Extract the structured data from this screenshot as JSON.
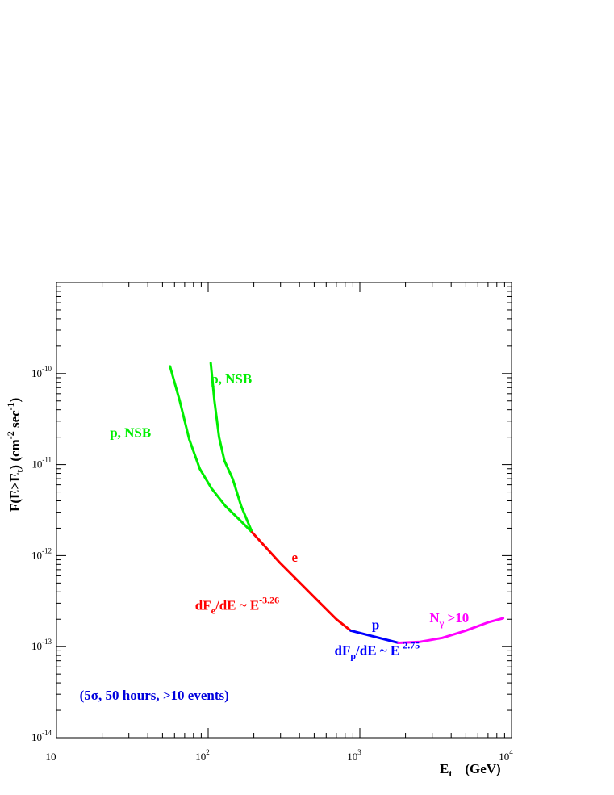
{
  "chart_data": {
    "type": "line",
    "title": "",
    "xlabel": "E",
    "xlabel_sub": "t",
    "xlabel_unit": "(GeV)",
    "ylabel": "F(E>E",
    "ylabel_sub": "t",
    "ylabel_tail": ") (cm",
    "ylabel_sup1": "-2",
    "ylabel_mid": " sec",
    "ylabel_sup2": "-1",
    "ylabel_end": ")",
    "xscale": "log",
    "yscale": "log",
    "xlim": [
      10,
      10000
    ],
    "ylim": [
      1e-14,
      1e-09
    ],
    "grid": false,
    "legend": "none",
    "x_ticks": [
      {
        "value": 10,
        "label": "10",
        "exp": ""
      },
      {
        "value": 100,
        "label": "10",
        "exp": "2"
      },
      {
        "value": 1000,
        "label": "10",
        "exp": "3"
      },
      {
        "value": 10000,
        "label": "10",
        "exp": "4"
      }
    ],
    "y_ticks": [
      {
        "value": 1e-14,
        "label": "10",
        "exp": "-14"
      },
      {
        "value": 1e-13,
        "label": "10",
        "exp": "-13"
      },
      {
        "value": 1e-12,
        "label": "10",
        "exp": "-12"
      },
      {
        "value": 1e-11,
        "label": "10",
        "exp": "-11"
      },
      {
        "value": 1e-10,
        "label": "10",
        "exp": "-10"
      }
    ],
    "series": [
      {
        "color": "#00ee00",
        "points": [
          [
            56,
            1.2e-10
          ],
          [
            65,
            5e-11
          ],
          [
            75,
            1.9e-11
          ],
          [
            88,
            9e-12
          ],
          [
            105,
            5.5e-12
          ],
          [
            130,
            3.5e-12
          ],
          [
            160,
            2.5e-12
          ],
          [
            195,
            1.8e-12
          ]
        ]
      },
      {
        "color": "#00ee00",
        "points": [
          [
            104,
            1.3e-10
          ],
          [
            110,
            5e-11
          ],
          [
            118,
            2e-11
          ],
          [
            128,
            1.1e-11
          ],
          [
            145,
            7e-12
          ],
          [
            165,
            3.5e-12
          ],
          [
            195,
            1.8e-12
          ]
        ]
      },
      {
        "color": "#ff0000",
        "points": [
          [
            195,
            1.8e-12
          ],
          [
            300,
            8.2e-13
          ],
          [
            500,
            3.5e-13
          ],
          [
            700,
            2e-13
          ],
          [
            870,
            1.5e-13
          ]
        ]
      },
      {
        "color": "#0000ff",
        "points": [
          [
            870,
            1.5e-13
          ],
          [
            1800,
            1.1e-13
          ]
        ]
      },
      {
        "color": "#ff00ff",
        "points": [
          [
            1800,
            1.1e-13
          ],
          [
            2500,
            1.13e-13
          ],
          [
            3500,
            1.25e-13
          ],
          [
            5000,
            1.5e-13
          ],
          [
            7000,
            1.85e-13
          ],
          [
            8800,
            2.05e-13
          ]
        ]
      }
    ],
    "annotations": [
      {
        "id": "pnsb1",
        "color": "#00ee00",
        "x": 22.5,
        "y": 2e-11,
        "parts": [
          {
            "t": "p, NSB"
          }
        ]
      },
      {
        "id": "pnsb2",
        "color": "#00ee00",
        "x": 104,
        "y": 7.8e-11,
        "parts": [
          {
            "t": "p, NSB"
          }
        ]
      },
      {
        "id": "e",
        "color": "#ff0000",
        "x": 355,
        "y": 8.6e-13,
        "parts": [
          {
            "t": "e"
          }
        ]
      },
      {
        "id": "dfe",
        "color": "#ff0000",
        "x": 82,
        "y": 2.55e-13,
        "parts": [
          {
            "t": "dF"
          },
          {
            "t": "e",
            "sub": true
          },
          {
            "t": "/dE ~ E"
          },
          {
            "t": "-3.26",
            "sup": true
          }
        ]
      },
      {
        "id": "p",
        "color": "#0000ff",
        "x": 1200,
        "y": 1.55e-13,
        "parts": [
          {
            "t": "p"
          }
        ]
      },
      {
        "id": "ng",
        "color": "#ff00ff",
        "x": 2880,
        "y": 1.85e-13,
        "parts": [
          {
            "t": "N"
          },
          {
            "t": "γ",
            "sub": true
          },
          {
            "t": " >10"
          }
        ]
      },
      {
        "id": "dfp",
        "color": "#0000ff",
        "x": 680,
        "y": 8.1e-14,
        "parts": [
          {
            "t": "dF"
          },
          {
            "t": "p",
            "sub": true
          },
          {
            "t": "/dE ~ E"
          },
          {
            "t": "-2.75",
            "sup": true
          }
        ]
      },
      {
        "id": "cond",
        "color": "#0000dd",
        "x": 14.2,
        "y": 2.6e-14,
        "parts": [
          {
            "t": "(5σ, 50 hours, >10 events)"
          }
        ]
      }
    ]
  }
}
